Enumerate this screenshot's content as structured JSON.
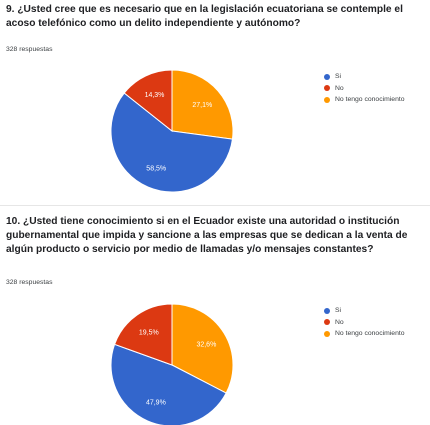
{
  "colors": {
    "si": "#3366cc",
    "no": "#dc3912",
    "no_tengo": "#ff9900"
  },
  "chart_data": [
    {
      "type": "pie",
      "title": "9. ¿Usted cree que es necesario que en la legislación ecuatoriana se contemple el acoso telefónico como un delito independiente y autónomo?",
      "responses": "328 respuestas",
      "categories": [
        "Si",
        "No",
        "No tengo conocimiento"
      ],
      "values": [
        58.5,
        14.3,
        27.1
      ],
      "labels": [
        "58,5%",
        "14,3%",
        "27,1%"
      ],
      "legend_position": "right"
    },
    {
      "type": "pie",
      "title": "10.  ¿Usted tiene conocimiento si en el Ecuador existe una autoridad o institución gubernamental que impida y sancione a las empresas que se dedican a la venta de algún producto o servicio por medio de llamadas y/o mensajes constantes?",
      "responses": "328 respuestas",
      "categories": [
        "Si",
        "No",
        "No tengo conocimiento"
      ],
      "values": [
        47.9,
        19.5,
        32.6
      ],
      "labels": [
        "47,9%",
        "19,5%",
        "32,6%"
      ],
      "legend_position": "right"
    }
  ]
}
